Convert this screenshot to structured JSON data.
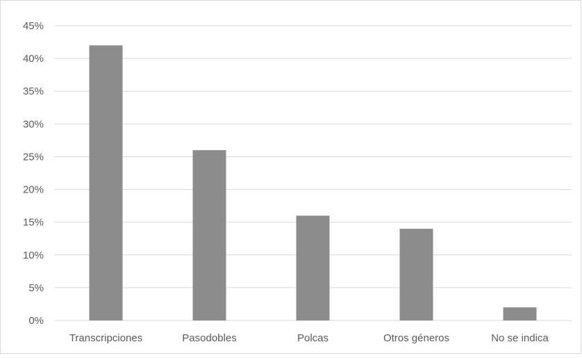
{
  "chart_data": {
    "type": "bar",
    "title": "",
    "xlabel": "",
    "ylabel": "",
    "categories": [
      "Transcripciones",
      "Pasodobles",
      "Polcas",
      "Otros géneros",
      "No se indica"
    ],
    "values": [
      0.42,
      0.26,
      0.16,
      0.14,
      0.02
    ],
    "ylim": [
      0,
      0.45
    ],
    "yticks": [
      "0%",
      "5%",
      "10%",
      "15%",
      "20%",
      "25%",
      "30%",
      "35%",
      "40%",
      "45%"
    ],
    "grid": true,
    "legend": "none",
    "bar_color": "#8c8c8c",
    "grid_color": "#d9d9d9",
    "text_color": "#595959"
  }
}
